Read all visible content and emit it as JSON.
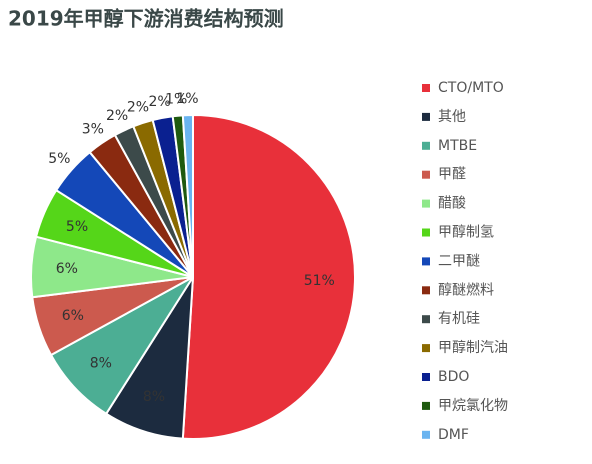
{
  "chart_data": {
    "type": "pie",
    "title": "2019年甲醇下游消费结构预测",
    "categories": [
      "CTO/MTO",
      "其他",
      "MTBE",
      "甲醛",
      "醋酸",
      "甲醇制氢",
      "二甲醚",
      "醇醚燃料",
      "有机硅",
      "甲醇制汽油",
      "BDO",
      "甲烷氯化物",
      "DMF"
    ],
    "values": [
      51,
      8,
      8,
      6,
      6,
      5,
      5,
      3,
      2,
      2,
      2,
      1,
      1
    ],
    "value_labels": [
      "51%",
      "8%",
      "8%",
      "6%",
      "6%",
      "5%",
      "5%",
      "3%",
      "2%",
      "2%",
      "2%",
      "1%",
      "1%"
    ],
    "colors": [
      "#e8303a",
      "#1c2b3f",
      "#4cae94",
      "#cc5a4e",
      "#8ee88a",
      "#55d619",
      "#1448b8",
      "#8a2a10",
      "#3c4a4a",
      "#8a6a00",
      "#0a2090",
      "#1f5a0f",
      "#6ab4f0"
    ],
    "legend": "right"
  }
}
